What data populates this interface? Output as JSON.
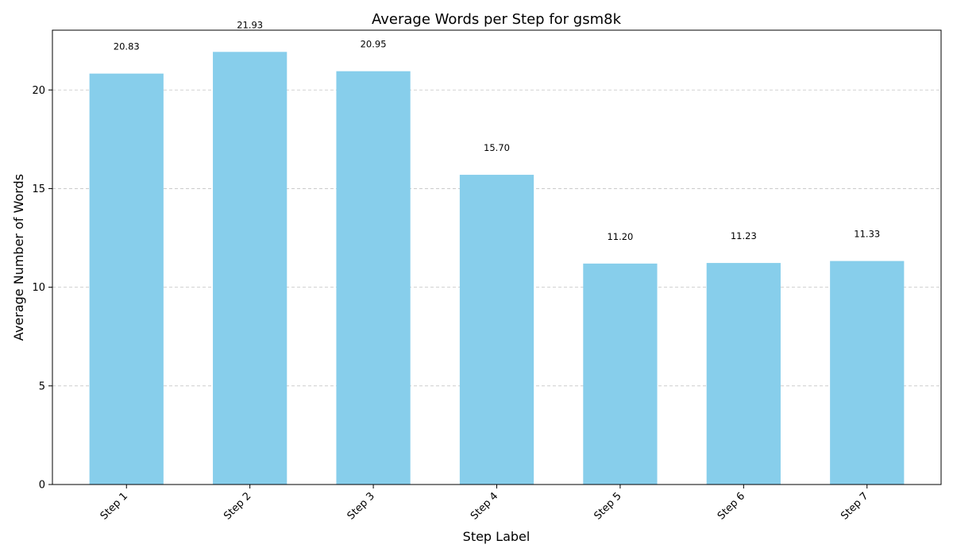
{
  "chart_data": {
    "type": "bar",
    "title": "Average Words per Step for gsm8k",
    "xlabel": "Step Label",
    "ylabel": "Average Number of Words",
    "categories": [
      "Step 1",
      "Step 2",
      "Step 3",
      "Step 4",
      "Step 5",
      "Step 6",
      "Step 7"
    ],
    "values": [
      20.83,
      21.93,
      20.95,
      15.7,
      11.2,
      11.23,
      11.33
    ],
    "value_labels": [
      "20.83",
      "21.93",
      "20.95",
      "15.70",
      "11.20",
      "11.23",
      "11.33"
    ],
    "ylim": [
      0,
      23.03
    ],
    "yticks": [
      0,
      5,
      10,
      15,
      20
    ],
    "grid": "y-dashed",
    "bar_color": "#87ceeb"
  }
}
